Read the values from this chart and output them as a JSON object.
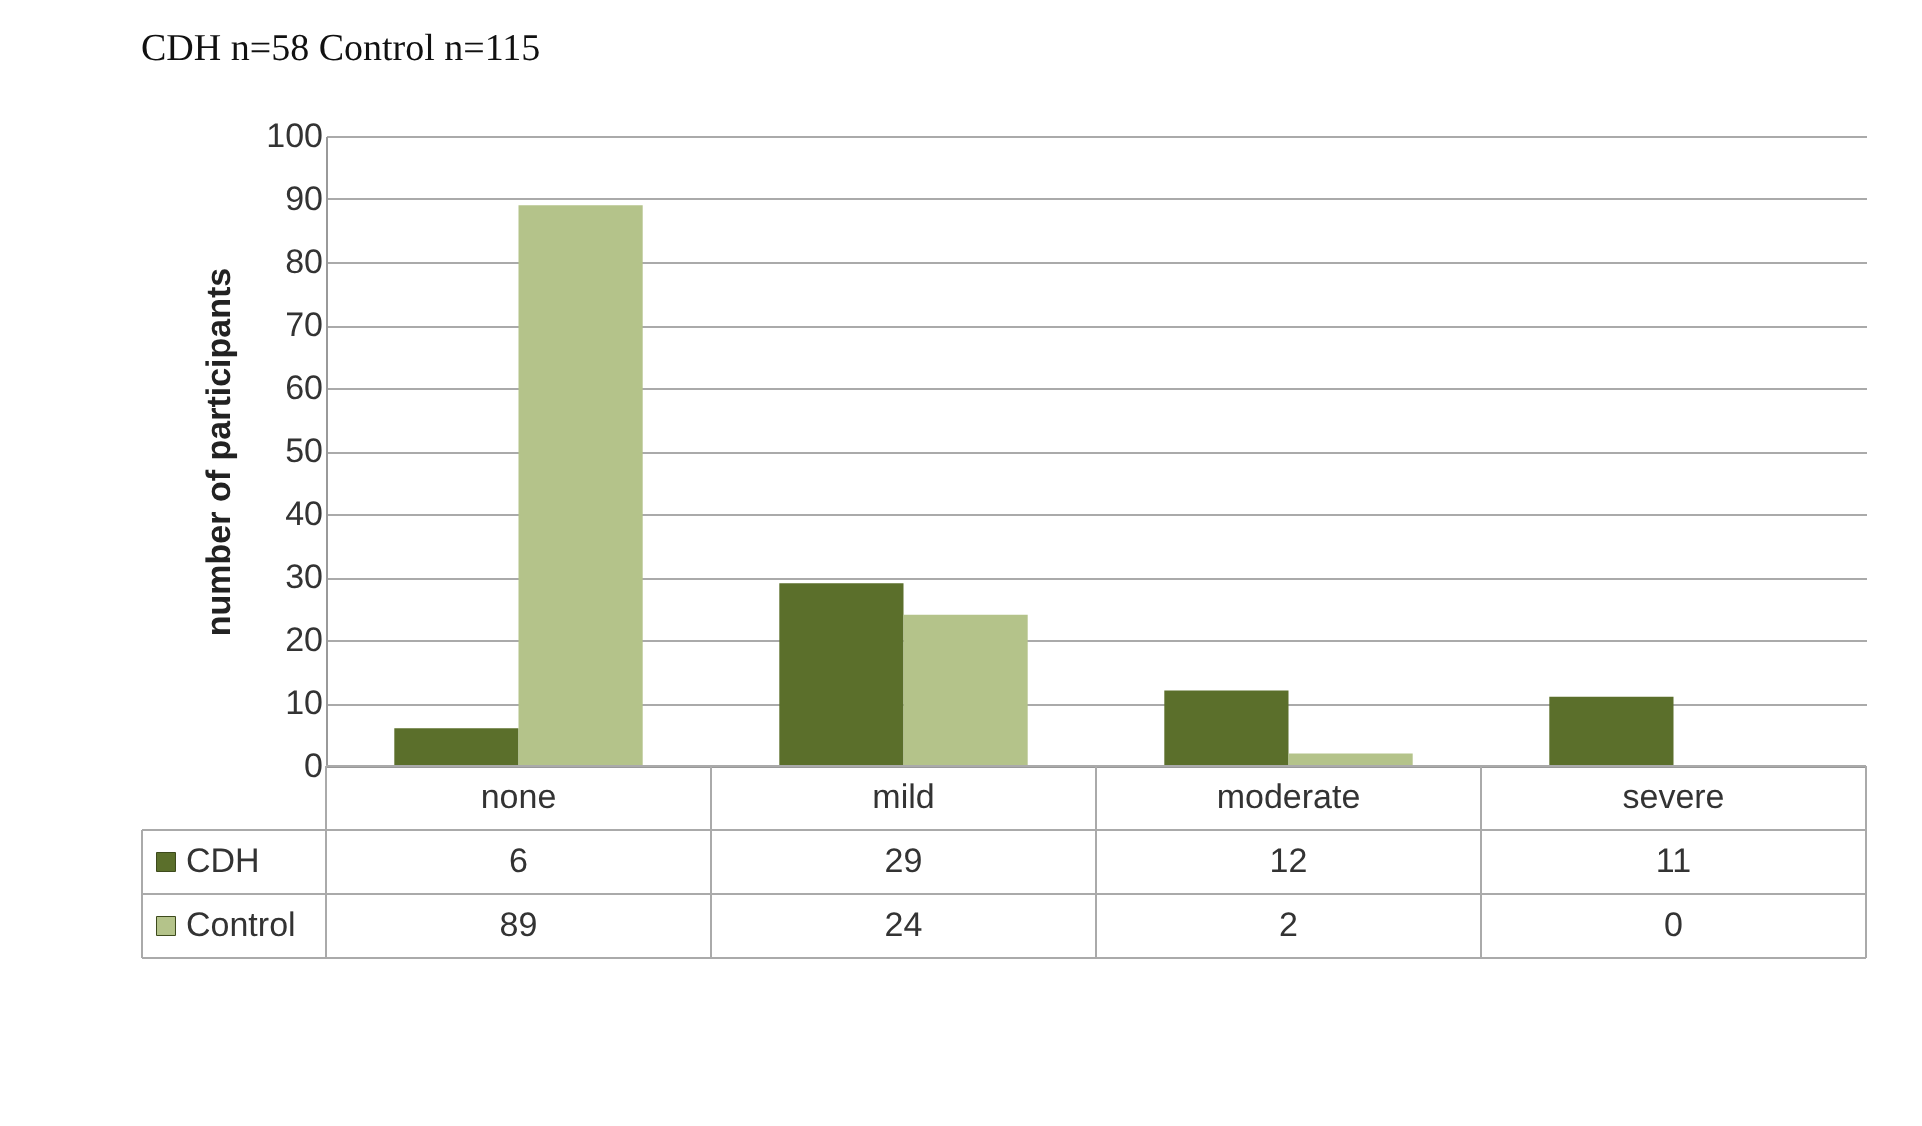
{
  "chart_data": {
    "type": "bar",
    "title": "CDH n=58        Control n=115",
    "ylabel": "number of participants",
    "categories": [
      "none",
      "mild",
      "moderate",
      "severe"
    ],
    "series": [
      {
        "name": "CDH",
        "color": "#5b6f2b",
        "values": [
          6,
          29,
          12,
          11
        ]
      },
      {
        "name": "Control",
        "color": "#b4c38a",
        "values": [
          89,
          24,
          2,
          0
        ]
      }
    ],
    "ylim": [
      0,
      100
    ],
    "yticks": [
      0,
      10,
      20,
      30,
      40,
      50,
      60,
      70,
      80,
      90,
      100
    ],
    "grid": "y",
    "data_labels": true,
    "legend": "bottom left"
  }
}
